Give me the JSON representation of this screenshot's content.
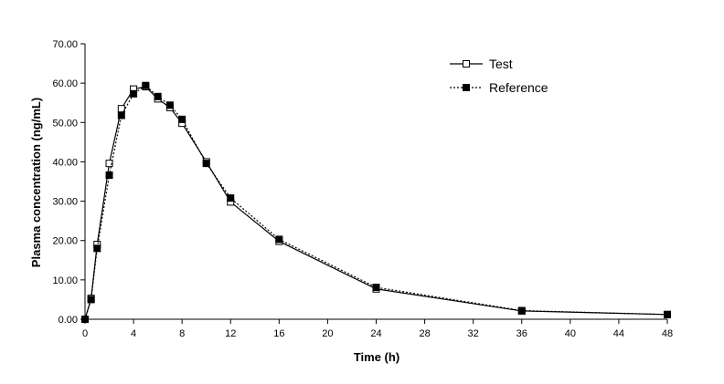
{
  "chart_data": {
    "type": "line",
    "title": "",
    "xlabel": "Time (h)",
    "ylabel": "Plasma concentration (ng/mL)",
    "xlim": [
      0,
      48
    ],
    "ylim": [
      0,
      70
    ],
    "x_ticks": [
      "0",
      "4",
      "8",
      "12",
      "16",
      "20",
      "24",
      "28",
      "32",
      "36",
      "40",
      "44",
      "48"
    ],
    "y_ticks": [
      "0.00",
      "10.00",
      "20.00",
      "30.00",
      "40.00",
      "50.00",
      "60.00",
      "70.00"
    ],
    "grid": false,
    "legend_position": "top-right",
    "series": [
      {
        "name": "Test",
        "line_style": "solid",
        "marker": "open-square",
        "x": [
          0,
          0.5,
          1,
          2,
          3,
          4,
          5,
          6,
          7,
          8,
          10,
          12,
          16,
          24,
          36,
          48
        ],
        "y": [
          0,
          5.3,
          19.0,
          39.6,
          53.5,
          58.5,
          59.1,
          56.0,
          53.8,
          49.8,
          40.0,
          29.8,
          19.8,
          7.7,
          2.1,
          1.2
        ]
      },
      {
        "name": "Reference",
        "line_style": "dotted",
        "marker": "filled-square",
        "x": [
          0,
          0.5,
          1,
          2,
          3,
          4,
          5,
          6,
          7,
          8,
          10,
          12,
          16,
          24,
          36,
          48
        ],
        "y": [
          0,
          5.0,
          18.0,
          36.6,
          51.8,
          57.3,
          59.4,
          56.6,
          54.4,
          50.8,
          39.6,
          30.8,
          20.3,
          8.1,
          2.2,
          1.2
        ]
      }
    ]
  }
}
